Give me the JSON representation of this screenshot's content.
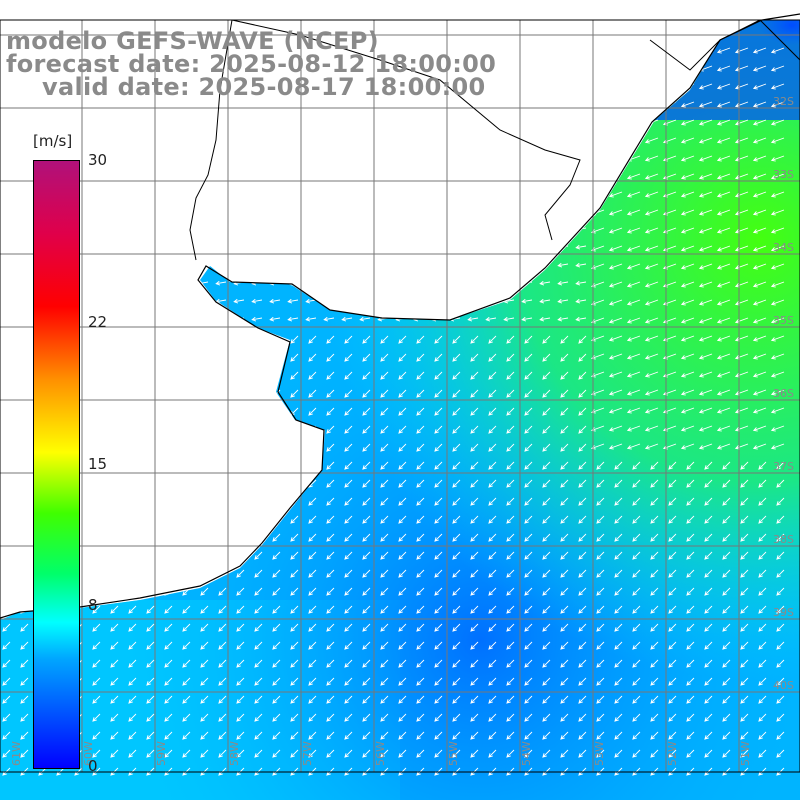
{
  "title": {
    "line1": "modelo GEFS-WAVE (NCEP)",
    "line2": "forecast date: 2025-08-12 18:00:00",
    "line3": "valid date: 2025-08-17 18:00:00"
  },
  "colorbar": {
    "unit": "[m/s]",
    "ticks": [
      "30",
      "22",
      "15",
      "8",
      "0"
    ],
    "tick_values": [
      30,
      22,
      15,
      8,
      0
    ],
    "range": [
      0,
      30
    ],
    "colors": [
      "#0000ff",
      "#00a6ff",
      "#00ffff",
      "#00ff6a",
      "#40ff00",
      "#ffff00",
      "#ff9000",
      "#ff0000",
      "#e0004a",
      "#b0117a"
    ]
  },
  "map": {
    "field": "wind speed",
    "vectors": "wind direction arrows (white)",
    "land_color": "#ffffff",
    "coast_color": "#000000",
    "grid_color": "#777777",
    "lat_labels": [
      "32S",
      "33S",
      "34S",
      "35S",
      "36S",
      "37S",
      "38S",
      "39S",
      "40S"
    ],
    "lon_labels": [
      "61W",
      "60W",
      "59W",
      "58W",
      "57W",
      "56W",
      "55W",
      "54W",
      "53W",
      "52W",
      "51W"
    ]
  }
}
